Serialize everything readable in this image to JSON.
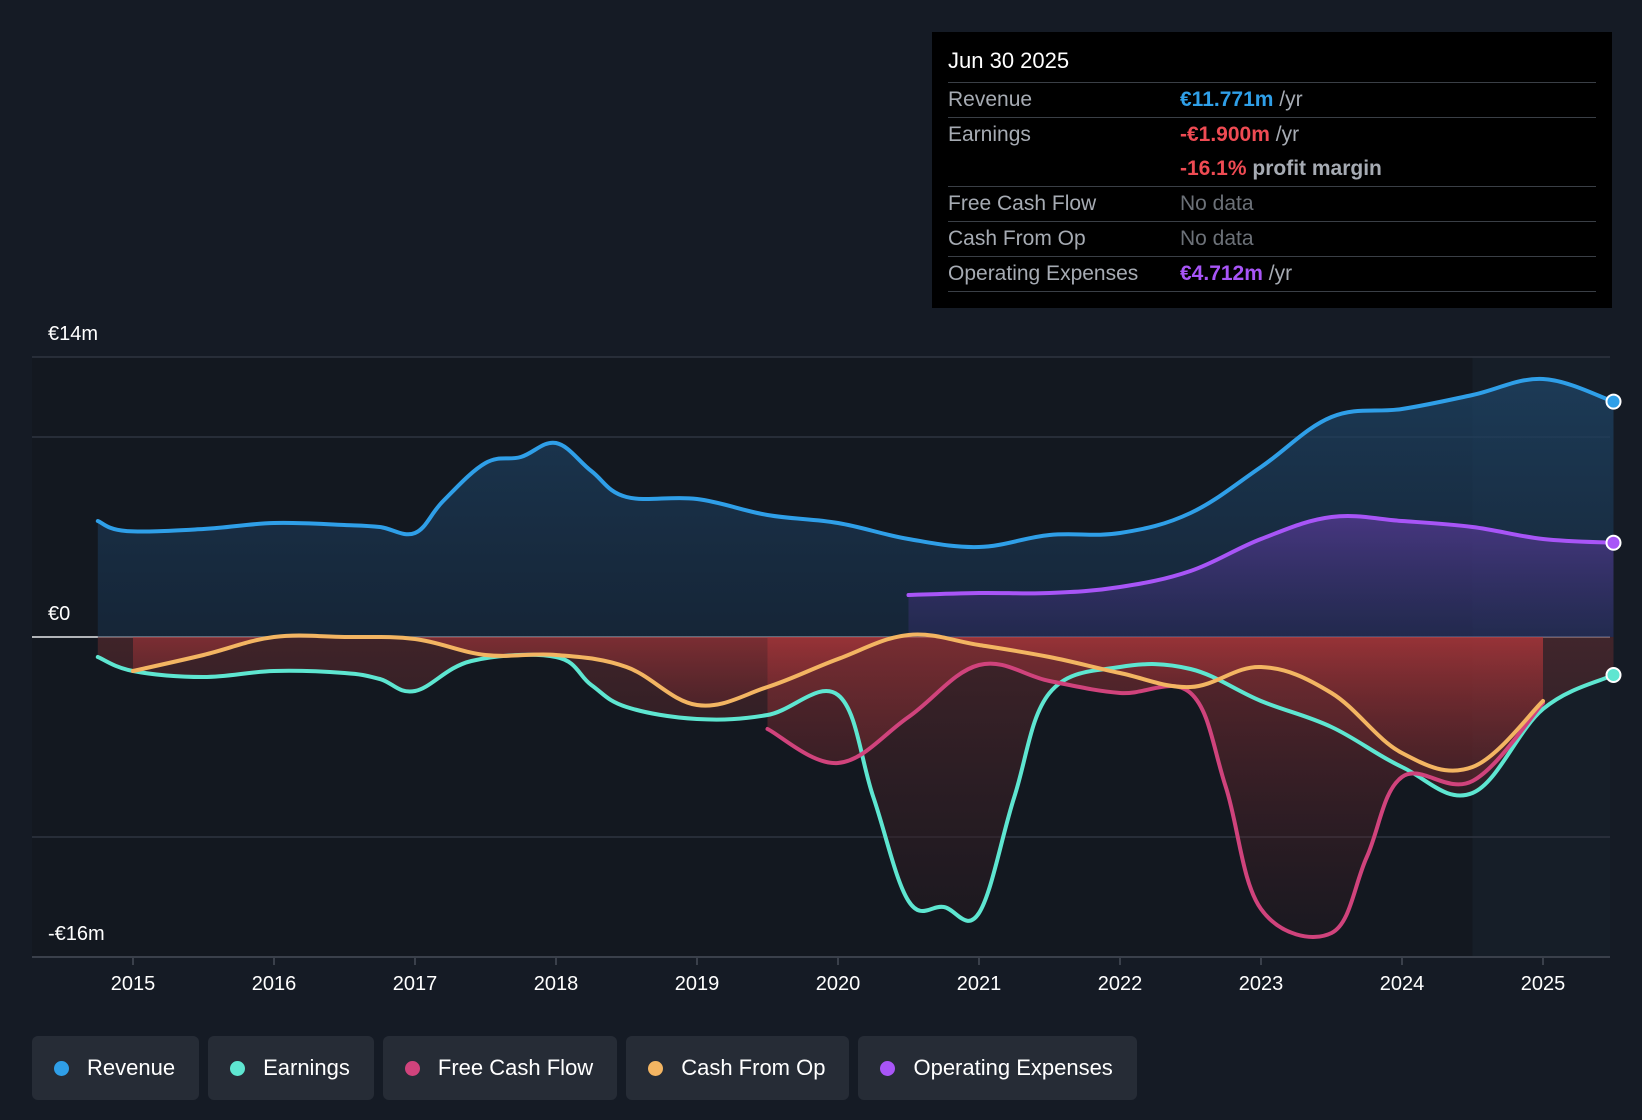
{
  "chart_data": {
    "type": "area",
    "title": "",
    "ylabel_top": "€14m",
    "ylabel_zero": "€0",
    "ylabel_bottom": "-€16m",
    "ylim": [
      -16,
      14
    ],
    "xlim": [
      2014.7,
      2025.5
    ],
    "x_ticks": [
      "2015",
      "2016",
      "2017",
      "2018",
      "2019",
      "2020",
      "2021",
      "2022",
      "2023",
      "2024",
      "2025"
    ],
    "highlight_start": 2024.5,
    "series": [
      {
        "name": "Revenue",
        "color": "#2f9fe8",
        "points": [
          [
            2014.75,
            5.8
          ],
          [
            2014.95,
            5.3
          ],
          [
            2015.5,
            5.4
          ],
          [
            2016.0,
            5.7
          ],
          [
            2016.5,
            5.6
          ],
          [
            2016.75,
            5.5
          ],
          [
            2017.0,
            5.2
          ],
          [
            2017.2,
            6.8
          ],
          [
            2017.5,
            8.7
          ],
          [
            2017.75,
            9.0
          ],
          [
            2018.0,
            9.7
          ],
          [
            2018.25,
            8.3
          ],
          [
            2018.5,
            7.0
          ],
          [
            2019.0,
            6.9
          ],
          [
            2019.5,
            6.1
          ],
          [
            2020.0,
            5.7
          ],
          [
            2020.5,
            4.9
          ],
          [
            2021.0,
            4.5
          ],
          [
            2021.5,
            5.1
          ],
          [
            2022.0,
            5.2
          ],
          [
            2022.5,
            6.2
          ],
          [
            2023.0,
            8.5
          ],
          [
            2023.5,
            11.0
          ],
          [
            2024.0,
            11.4
          ],
          [
            2024.5,
            12.1
          ],
          [
            2025.0,
            12.9
          ],
          [
            2025.5,
            11.771
          ]
        ]
      },
      {
        "name": "Earnings",
        "color": "#5ee6d1",
        "points": [
          [
            2014.75,
            -1.0
          ],
          [
            2015.0,
            -1.7
          ],
          [
            2015.5,
            -2.0
          ],
          [
            2016.0,
            -1.7
          ],
          [
            2016.5,
            -1.8
          ],
          [
            2016.75,
            -2.1
          ],
          [
            2017.0,
            -2.7
          ],
          [
            2017.4,
            -1.2
          ],
          [
            2018.0,
            -1.0
          ],
          [
            2018.25,
            -2.4
          ],
          [
            2018.5,
            -3.5
          ],
          [
            2019.0,
            -4.1
          ],
          [
            2019.5,
            -3.9
          ],
          [
            2020.0,
            -2.9
          ],
          [
            2020.25,
            -8.0
          ],
          [
            2020.5,
            -13.2
          ],
          [
            2020.75,
            -13.5
          ],
          [
            2021.0,
            -13.8
          ],
          [
            2021.25,
            -8.0
          ],
          [
            2021.5,
            -2.8
          ],
          [
            2022.0,
            -1.5
          ],
          [
            2022.5,
            -1.6
          ],
          [
            2023.0,
            -3.2
          ],
          [
            2023.5,
            -4.5
          ],
          [
            2024.0,
            -6.5
          ],
          [
            2024.5,
            -7.8
          ],
          [
            2025.0,
            -3.6
          ],
          [
            2025.5,
            -1.9
          ]
        ]
      },
      {
        "name": "Free Cash Flow",
        "color": "#d0437c",
        "points": [
          [
            2019.5,
            -4.6
          ],
          [
            2020.0,
            -6.3
          ],
          [
            2020.5,
            -4.0
          ],
          [
            2021.0,
            -1.4
          ],
          [
            2021.5,
            -2.2
          ],
          [
            2022.0,
            -2.8
          ],
          [
            2022.5,
            -2.8
          ],
          [
            2022.75,
            -7.5
          ],
          [
            2023.0,
            -13.6
          ],
          [
            2023.5,
            -14.8
          ],
          [
            2023.75,
            -11.0
          ],
          [
            2024.0,
            -7.0
          ],
          [
            2024.5,
            -7.2
          ],
          [
            2025.0,
            -3.3
          ]
        ]
      },
      {
        "name": "Cash From Op",
        "color": "#f3b562",
        "points": [
          [
            2015.0,
            -1.7
          ],
          [
            2015.5,
            -0.9
          ],
          [
            2016.0,
            0.0
          ],
          [
            2016.5,
            0.0
          ],
          [
            2017.0,
            -0.1
          ],
          [
            2017.5,
            -0.9
          ],
          [
            2018.0,
            -0.9
          ],
          [
            2018.5,
            -1.5
          ],
          [
            2019.0,
            -3.4
          ],
          [
            2019.5,
            -2.5
          ],
          [
            2020.0,
            -1.1
          ],
          [
            2020.5,
            0.1
          ],
          [
            2021.0,
            -0.4
          ],
          [
            2021.5,
            -1.0
          ],
          [
            2022.0,
            -1.8
          ],
          [
            2022.5,
            -2.5
          ],
          [
            2023.0,
            -1.5
          ],
          [
            2023.5,
            -2.8
          ],
          [
            2024.0,
            -5.8
          ],
          [
            2024.5,
            -6.5
          ],
          [
            2025.0,
            -3.2
          ]
        ]
      },
      {
        "name": "Operating Expenses",
        "color": "#a855f7",
        "points": [
          [
            2020.5,
            2.1
          ],
          [
            2021.0,
            2.2
          ],
          [
            2021.5,
            2.2
          ],
          [
            2022.0,
            2.5
          ],
          [
            2022.5,
            3.3
          ],
          [
            2023.0,
            4.9
          ],
          [
            2023.5,
            6.0
          ],
          [
            2024.0,
            5.8
          ],
          [
            2024.5,
            5.5
          ],
          [
            2025.0,
            4.9
          ],
          [
            2025.5,
            4.712
          ]
        ]
      }
    ]
  },
  "tooltip": {
    "date": "Jun 30 2025",
    "revenue_label": "Revenue",
    "revenue_value": "€11.771m",
    "revenue_unit": "/yr",
    "earnings_label": "Earnings",
    "earnings_value": "-€1.900m",
    "earnings_unit": "/yr",
    "margin_value": "-16.1%",
    "margin_text": "profit margin",
    "fcf_label": "Free Cash Flow",
    "fcf_value": "No data",
    "cfo_label": "Cash From Op",
    "cfo_value": "No data",
    "opex_label": "Operating Expenses",
    "opex_value": "€4.712m",
    "opex_unit": "/yr"
  },
  "legend": {
    "revenue": "Revenue",
    "earnings": "Earnings",
    "fcf": "Free Cash Flow",
    "cfo": "Cash From Op",
    "opex": "Operating Expenses"
  }
}
